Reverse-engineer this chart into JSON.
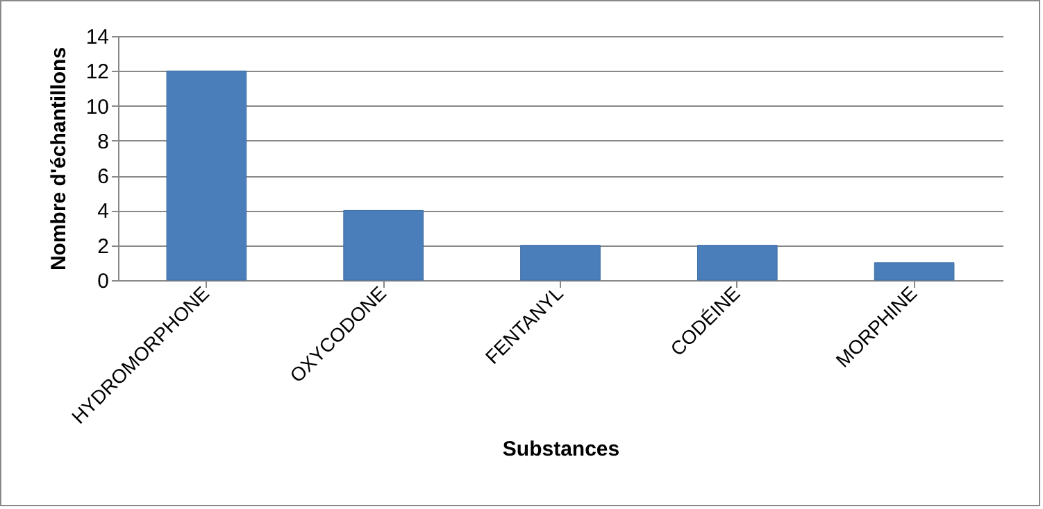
{
  "chart_data": {
    "type": "bar",
    "xlabel": "Substances",
    "ylabel": "Nombre d'échantillons",
    "categories": [
      "HYDROMORPHONE",
      "OXYCODONE",
      "FENTANYL",
      "CODÉINE",
      "MORPHINE"
    ],
    "values": [
      12,
      4,
      2,
      2,
      1
    ],
    "color": "#4a7ebb",
    "ylim": [
      0,
      14
    ],
    "yticks": [
      0,
      2,
      4,
      6,
      8,
      10,
      12,
      14
    ],
    "grid": "y"
  }
}
